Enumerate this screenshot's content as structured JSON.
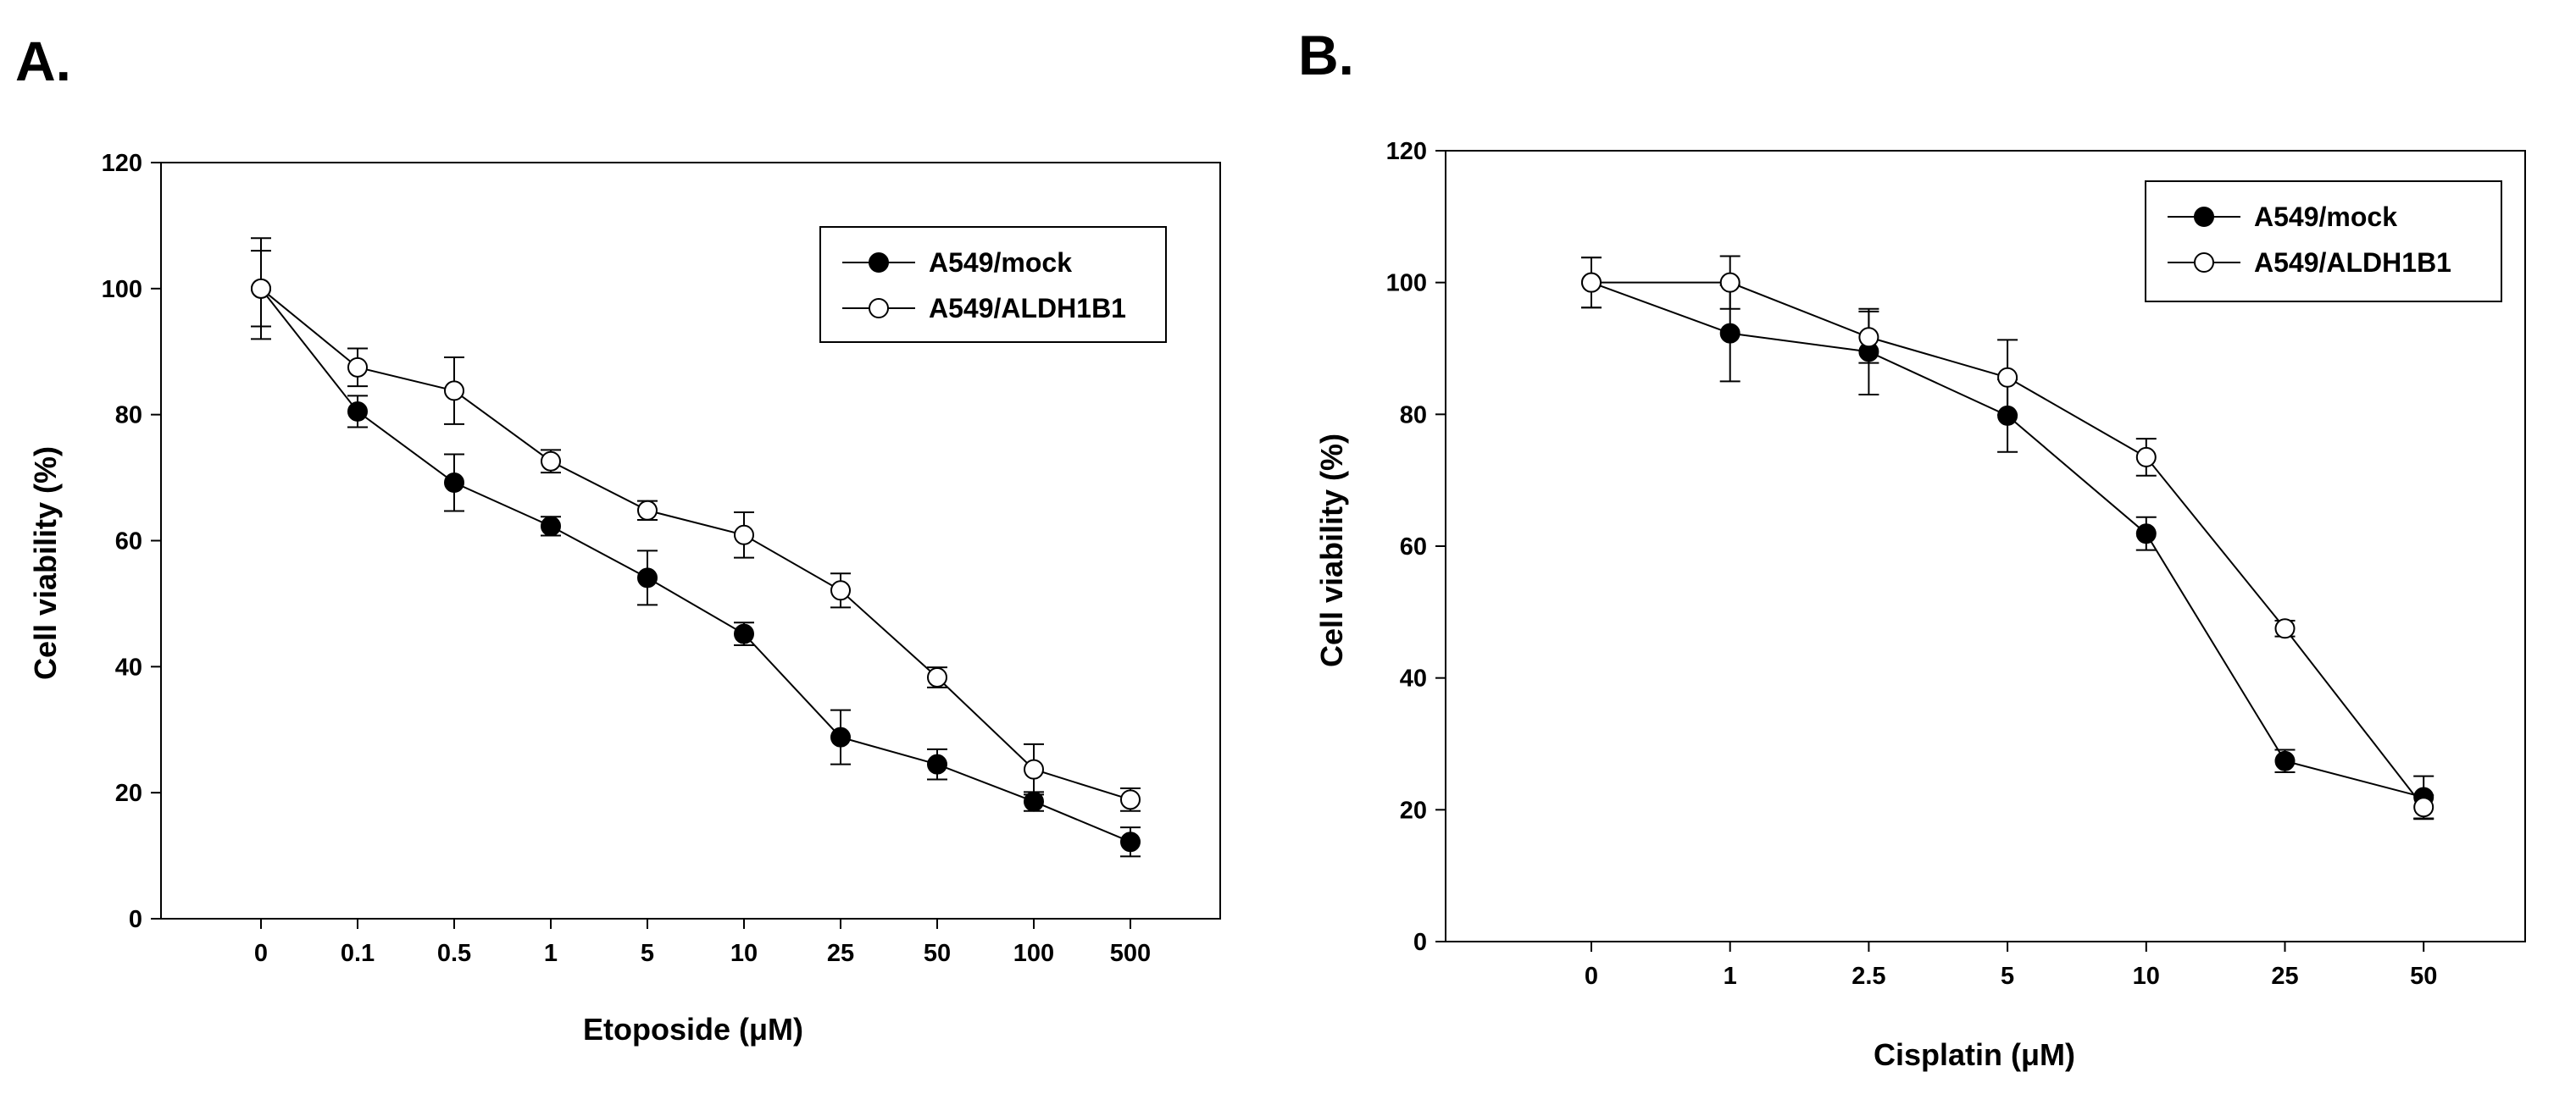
{
  "panels": [
    {
      "letter": "A.",
      "chart_data": {
        "type": "line",
        "categories": [
          "0",
          "0.1",
          "0.5",
          "1",
          "5",
          "10",
          "25",
          "50",
          "100",
          "500"
        ],
        "xlabel": "Etoposide (μM)",
        "ylabel": "Cell viability (%)",
        "ylim": [
          0,
          120
        ],
        "yticks": [
          "0",
          "20",
          "40",
          "60",
          "80",
          "100",
          "120"
        ],
        "grid": false,
        "legend_position": "top-right",
        "series": [
          {
            "name": "A549/mock",
            "marker": "filled-circle",
            "values": [
              100,
              80.5,
              69.2,
              62.3,
              54.1,
              45.2,
              28.8,
              24.5,
              18.6,
              12.2
            ],
            "errors": [
              6.0,
              2.5,
              4.5,
              1.5,
              4.3,
              1.8,
              4.3,
              2.4,
              1.5,
              2.3
            ]
          },
          {
            "name": "A549/ALDH1B1",
            "marker": "open-circle",
            "values": [
              100,
              87.5,
              83.8,
              72.6,
              64.8,
              60.9,
              52.1,
              38.3,
              23.7,
              18.9
            ],
            "errors": [
              8.0,
              3.0,
              5.3,
              1.8,
              1.5,
              3.6,
              2.7,
              1.6,
              4.0,
              1.8
            ]
          }
        ]
      }
    },
    {
      "letter": "B.",
      "chart_data": {
        "type": "line",
        "categories": [
          "0",
          "1",
          "2.5",
          "5",
          "10",
          "25",
          "50"
        ],
        "xlabel": "Cisplatin (μM)",
        "ylabel": "Cell viability (%)",
        "ylim": [
          0,
          120
        ],
        "yticks": [
          "0",
          "20",
          "40",
          "60",
          "80",
          "100",
          "120"
        ],
        "grid": false,
        "legend_position": "top-right",
        "series": [
          {
            "name": "A549/mock",
            "marker": "filled-circle",
            "values": [
              100,
              92.3,
              89.5,
              79.8,
              61.9,
              27.4,
              21.9
            ],
            "errors": [
              3.8,
              7.3,
              6.5,
              5.5,
              2.5,
              1.7,
              3.2
            ]
          },
          {
            "name": "A549/ALDH1B1",
            "marker": "open-circle",
            "values": [
              100,
              100,
              91.7,
              85.6,
              73.5,
              47.5,
              20.4
            ],
            "errors": [
              3.8,
              4.0,
              3.9,
              5.7,
              2.8,
              1.2,
              1.8
            ]
          }
        ]
      }
    }
  ]
}
